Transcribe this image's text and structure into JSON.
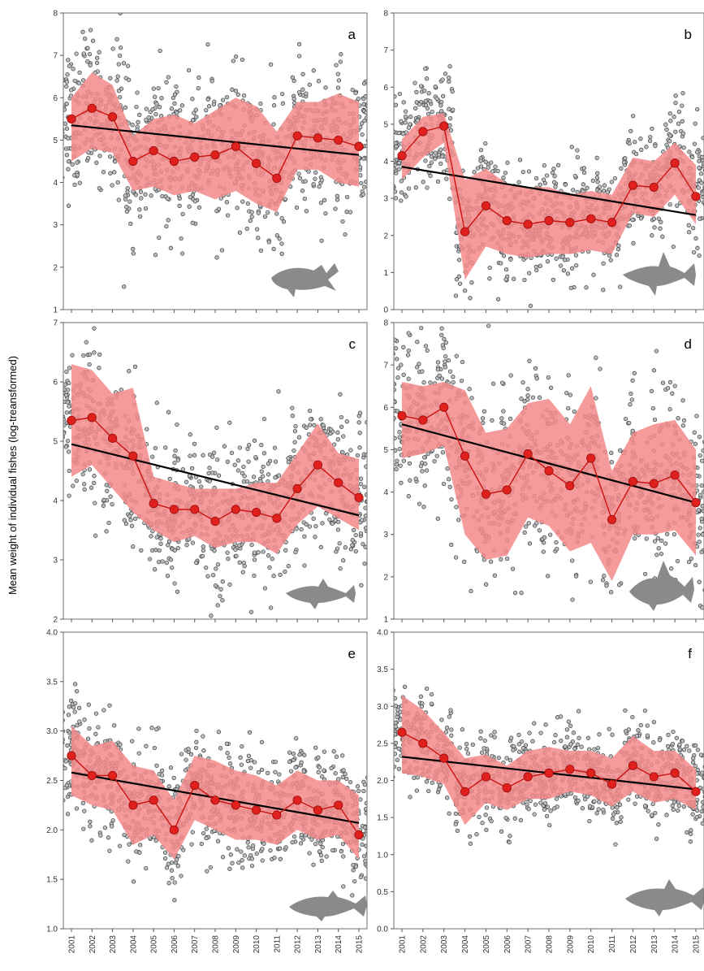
{
  "figure": {
    "ylabel": "Mean weight of individual fishes (log-treansformed)"
  },
  "colors": {
    "band": "#f48a8a",
    "mean_line": "#cc1111",
    "mean_point": "#e0201c",
    "trend": "#000000",
    "scatter_fill": "#b9bdc0",
    "scatter_stroke": "#3c3c3c",
    "silhouette": "#8a8a8a"
  },
  "chart_data": [
    {
      "type": "scatter",
      "panel": "a",
      "x": [
        2001,
        2002,
        2003,
        2004,
        2005,
        2006,
        2007,
        2008,
        2009,
        2010,
        2011,
        2012,
        2013,
        2014,
        2015
      ],
      "mean": [
        5.5,
        5.75,
        5.55,
        4.5,
        4.75,
        4.5,
        4.6,
        4.65,
        4.85,
        4.45,
        4.1,
        5.1,
        5.05,
        5.0,
        4.85
      ],
      "band_upper": [
        6.0,
        6.6,
        6.3,
        5.1,
        5.5,
        5.6,
        5.4,
        5.7,
        6.0,
        5.8,
        5.2,
        5.9,
        5.9,
        6.1,
        5.9
      ],
      "band_lower": [
        4.5,
        4.8,
        4.7,
        3.8,
        3.9,
        3.7,
        3.8,
        3.6,
        3.8,
        3.5,
        3.3,
        4.3,
        4.3,
        4.0,
        3.9
      ],
      "trend": [
        5.35,
        4.65
      ],
      "scatter_sd": 0.85,
      "ylim": [
        1,
        8
      ],
      "yticks": [
        "1",
        "2",
        "3",
        "4",
        "5",
        "6",
        "7",
        "8"
      ],
      "silhouette": "fish-a"
    },
    {
      "type": "scatter",
      "panel": "b",
      "x": [
        2001,
        2002,
        2003,
        2004,
        2005,
        2006,
        2007,
        2008,
        2009,
        2010,
        2011,
        2012,
        2013,
        2014,
        2015
      ],
      "mean": [
        4.15,
        4.8,
        4.95,
        2.1,
        2.8,
        2.4,
        2.3,
        2.4,
        2.35,
        2.45,
        2.35,
        3.35,
        3.3,
        3.95,
        3.05
      ],
      "band_upper": [
        4.6,
        5.2,
        5.3,
        3.5,
        3.8,
        3.4,
        3.3,
        3.3,
        3.1,
        3.2,
        3.1,
        4.1,
        4.0,
        4.5,
        3.9
      ],
      "band_lower": [
        3.5,
        4.1,
        4.5,
        0.8,
        1.7,
        1.5,
        1.4,
        1.5,
        1.5,
        1.6,
        1.5,
        2.6,
        2.5,
        3.1,
        2.3
      ],
      "trend": [
        3.85,
        2.55
      ],
      "scatter_sd": 0.75,
      "ylim": [
        0,
        8
      ],
      "yticks": [
        "0",
        "1",
        "2",
        "3",
        "4",
        "5",
        "6",
        "7",
        "8"
      ],
      "silhouette": "fish-b"
    },
    {
      "type": "scatter",
      "panel": "c",
      "x": [
        2001,
        2002,
        2003,
        2004,
        2005,
        2006,
        2007,
        2008,
        2009,
        2010,
        2011,
        2012,
        2013,
        2014,
        2015
      ],
      "mean": [
        5.35,
        5.4,
        5.05,
        4.75,
        3.95,
        3.85,
        3.85,
        3.65,
        3.85,
        3.8,
        3.7,
        4.2,
        4.6,
        4.3,
        4.05
      ],
      "band_upper": [
        6.3,
        6.2,
        5.8,
        5.9,
        4.4,
        4.3,
        4.2,
        4.2,
        4.2,
        4.3,
        4.3,
        4.8,
        5.3,
        4.8,
        4.7
      ],
      "band_lower": [
        4.4,
        4.6,
        4.2,
        3.8,
        3.5,
        3.3,
        3.4,
        3.2,
        3.3,
        3.3,
        3.1,
        3.6,
        3.9,
        3.7,
        3.5
      ],
      "trend": [
        4.95,
        3.75
      ],
      "scatter_sd": 0.6,
      "ylim": [
        2,
        7
      ],
      "yticks": [
        "2",
        "3",
        "4",
        "5",
        "6",
        "7"
      ],
      "silhouette": "fish-c"
    },
    {
      "type": "scatter",
      "panel": "d",
      "x": [
        2001,
        2002,
        2003,
        2004,
        2005,
        2006,
        2007,
        2008,
        2009,
        2010,
        2011,
        2012,
        2013,
        2014,
        2015
      ],
      "mean": [
        5.8,
        5.7,
        6.0,
        4.85,
        3.95,
        4.05,
        4.9,
        4.5,
        4.15,
        4.8,
        3.35,
        4.25,
        4.2,
        4.4,
        3.75
      ],
      "band_upper": [
        6.6,
        6.5,
        6.6,
        6.4,
        5.4,
        5.5,
        6.1,
        6.2,
        5.6,
        6.5,
        4.5,
        5.4,
        5.6,
        5.7,
        5.0
      ],
      "band_lower": [
        4.8,
        4.9,
        5.1,
        3.0,
        2.4,
        2.5,
        3.4,
        3.2,
        2.6,
        2.8,
        1.9,
        3.0,
        3.0,
        3.1,
        2.5
      ],
      "trend": [
        5.6,
        3.75
      ],
      "scatter_sd": 1.05,
      "ylim": [
        1,
        8
      ],
      "yticks": [
        "1",
        "2",
        "3",
        "4",
        "5",
        "6",
        "7",
        "8"
      ],
      "silhouette": "fish-d"
    },
    {
      "type": "scatter",
      "panel": "e",
      "x": [
        2001,
        2002,
        2003,
        2004,
        2005,
        2006,
        2007,
        2008,
        2009,
        2010,
        2011,
        2012,
        2013,
        2014,
        2015
      ],
      "mean": [
        2.75,
        2.55,
        2.55,
        2.25,
        2.3,
        2.0,
        2.45,
        2.3,
        2.25,
        2.2,
        2.15,
        2.3,
        2.2,
        2.25,
        1.95
      ],
      "band_upper": [
        3.05,
        2.85,
        2.9,
        2.65,
        2.6,
        2.3,
        2.75,
        2.7,
        2.6,
        2.55,
        2.45,
        2.6,
        2.5,
        2.5,
        2.35
      ],
      "band_lower": [
        2.35,
        2.25,
        2.2,
        1.85,
        1.95,
        1.7,
        2.1,
        2.0,
        1.9,
        1.9,
        1.85,
        2.0,
        1.9,
        1.95,
        1.7
      ],
      "trend": [
        2.58,
        2.07
      ],
      "scatter_sd": 0.28,
      "ylim": [
        1.0,
        4.0
      ],
      "yticks": [
        "1.0",
        "1.5",
        "2.0",
        "2.5",
        "3.0",
        "3.5",
        "4.0"
      ],
      "silhouette": "fish-e"
    },
    {
      "type": "scatter",
      "panel": "f",
      "x": [
        2001,
        2002,
        2003,
        2004,
        2005,
        2006,
        2007,
        2008,
        2009,
        2010,
        2011,
        2012,
        2013,
        2014,
        2015
      ],
      "mean": [
        2.65,
        2.5,
        2.3,
        1.85,
        2.05,
        1.9,
        2.05,
        2.1,
        2.15,
        2.1,
        1.95,
        2.2,
        2.05,
        2.1,
        1.85
      ],
      "band_upper": [
        3.15,
        2.95,
        2.65,
        2.3,
        2.35,
        2.2,
        2.4,
        2.45,
        2.4,
        2.4,
        2.3,
        2.6,
        2.4,
        2.4,
        2.15
      ],
      "band_lower": [
        2.1,
        2.05,
        1.95,
        1.4,
        1.7,
        1.6,
        1.75,
        1.75,
        1.85,
        1.8,
        1.65,
        1.85,
        1.7,
        1.75,
        1.6
      ],
      "trend": [
        2.32,
        1.88
      ],
      "scatter_sd": 0.3,
      "ylim": [
        0.0,
        4.0
      ],
      "yticks": [
        "0.0",
        "0.5",
        "1.0",
        "1.5",
        "2.0",
        "2.5",
        "3.0",
        "3.5",
        "4.0"
      ],
      "silhouette": "fish-f"
    }
  ]
}
